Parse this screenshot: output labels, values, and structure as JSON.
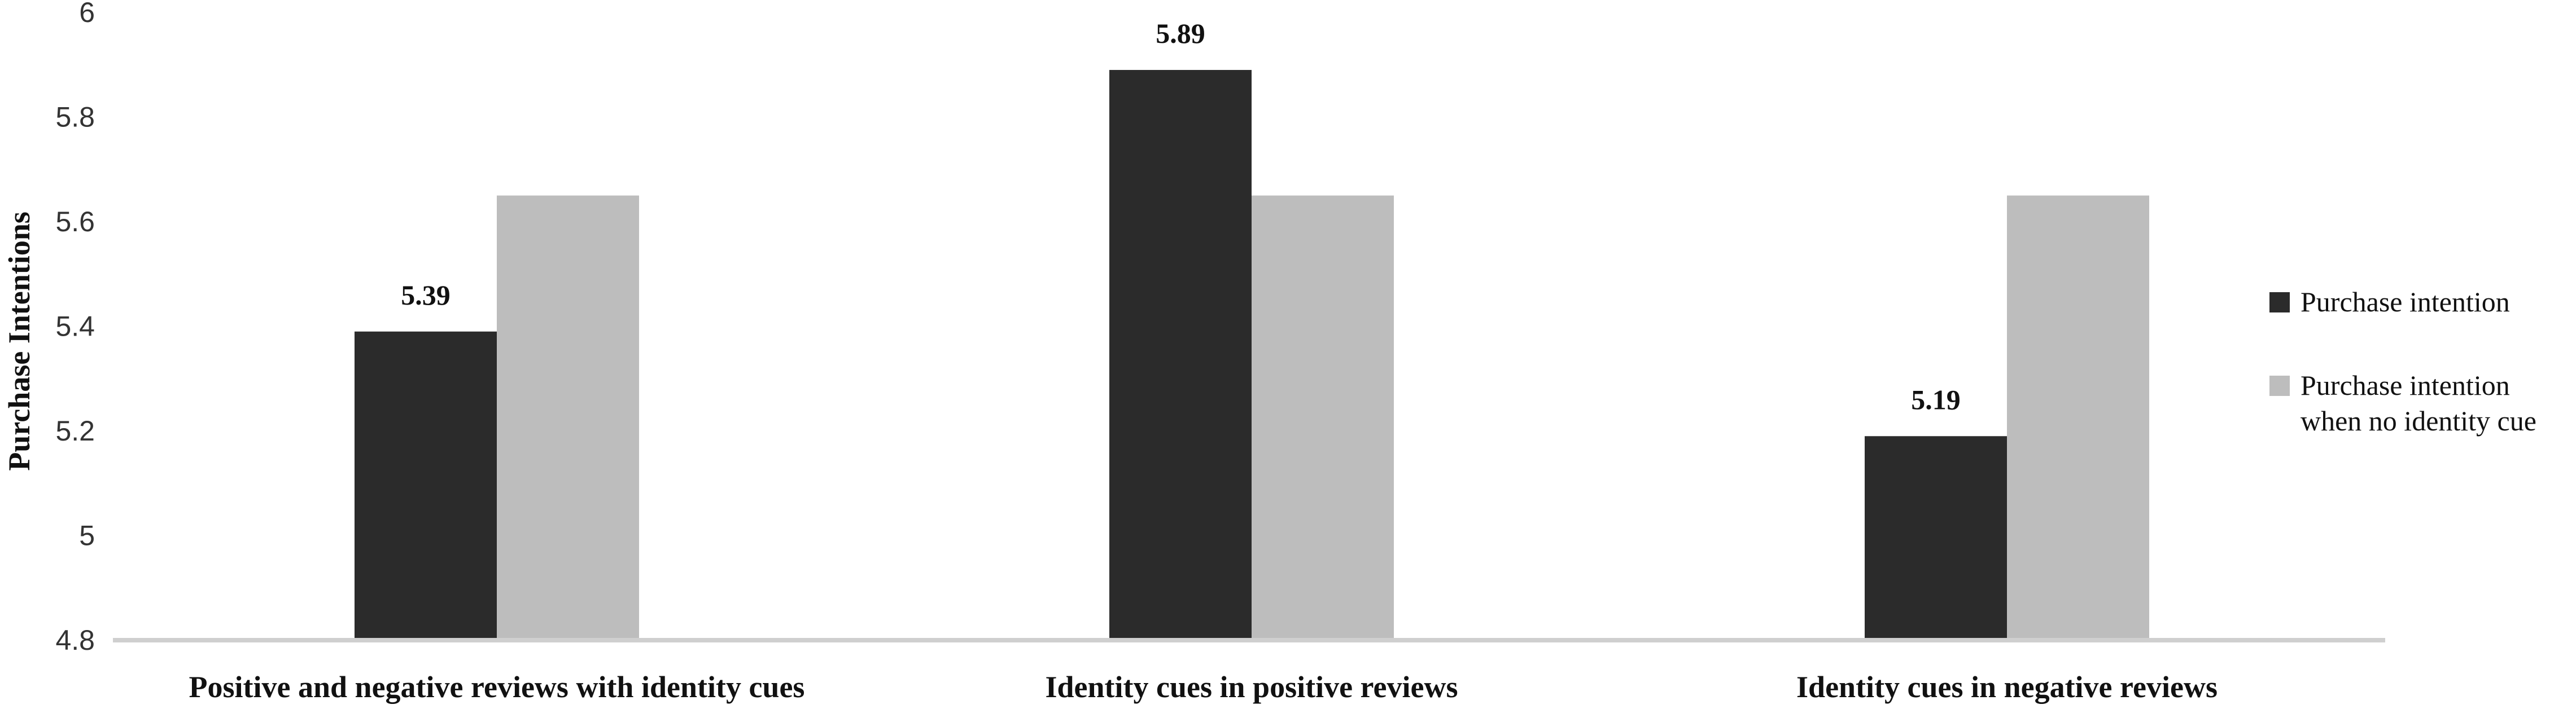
{
  "chart_data": {
    "type": "bar",
    "title": "",
    "xlabel": "",
    "ylabel": "Purchase Intentions",
    "ylim": [
      4.8,
      6
    ],
    "yticks": [
      "4.8",
      "5",
      "5.2",
      "5.4",
      "5.6",
      "5.8",
      "6"
    ],
    "grid": false,
    "legend_position": "right",
    "categories": [
      "Positive and negative reviews with identity cues",
      "Identity cues in positive reviews",
      "Identity cues in negative reviews"
    ],
    "series": [
      {
        "name": "Purchase intention",
        "color": "#2b2b2b",
        "values": [
          5.39,
          5.89,
          5.19
        ],
        "data_labels": [
          "5.39",
          "5.89",
          "5.19"
        ]
      },
      {
        "name_lines": [
          "Purchase intention",
          "when no identity cue"
        ],
        "color": "#bdbdbd",
        "values": [
          5.65,
          5.65,
          5.65
        ]
      }
    ]
  }
}
